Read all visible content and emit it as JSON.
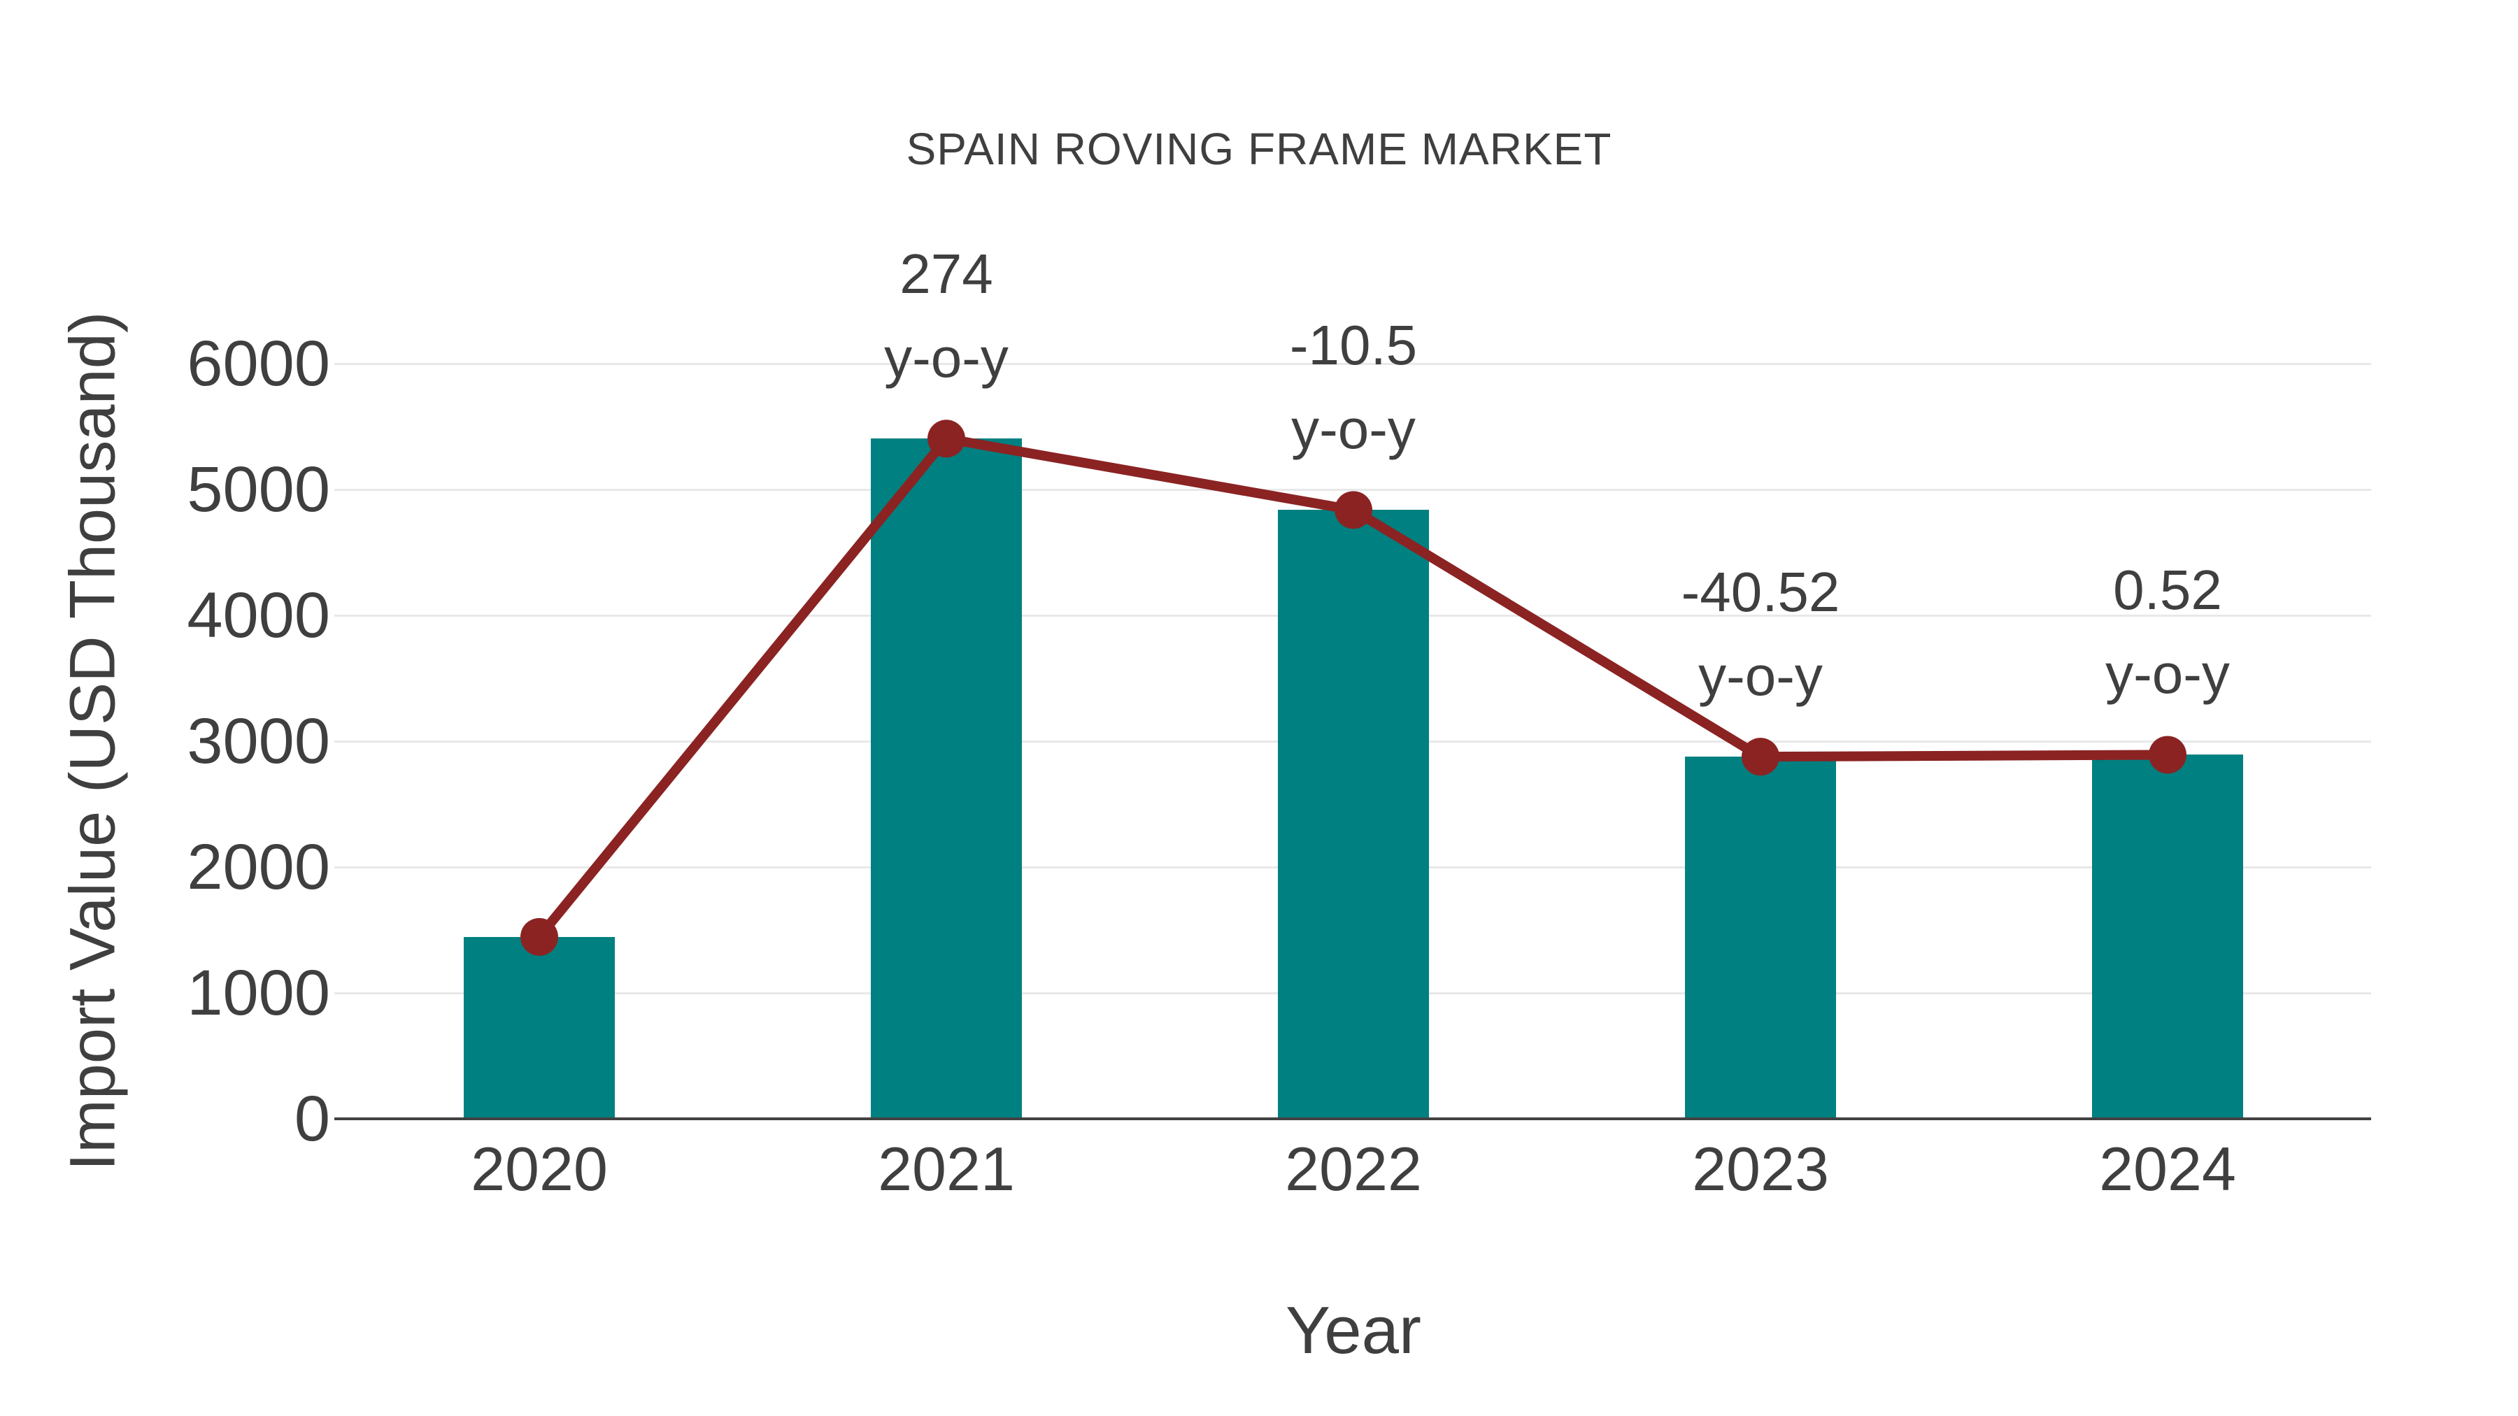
{
  "background": "#ffffff",
  "colors": {
    "bar": "#008080",
    "line": "#8b2323",
    "text": "#3f3f3f",
    "gridline": "#e8e8e8",
    "axis_line": "#424242"
  },
  "chart_data": {
    "type": "bar",
    "title": "SPAIN ROVING FRAME MARKET",
    "xlabel": "Year",
    "ylabel": "Import Value (USD Thousand)",
    "categories": [
      "2020",
      "2021",
      "2022",
      "2023",
      "2024"
    ],
    "series": [
      {
        "name": "Import Value (USD Thousand)",
        "type": "bar",
        "color": "#008080",
        "values": [
          1445,
          5404,
          4837,
          2877,
          2892
        ]
      },
      {
        "name": "Year-over-year trend",
        "type": "line",
        "color": "#8b2323",
        "values": [
          1445,
          5404,
          4837,
          2877,
          2892
        ]
      }
    ],
    "annotations": [
      {
        "category": "2021",
        "lines": [
          "274",
          "y-o-y"
        ]
      },
      {
        "category": "2022",
        "lines": [
          "-10.5",
          "y-o-y"
        ]
      },
      {
        "category": "2023",
        "lines": [
          "-40.52",
          "y-o-y"
        ]
      },
      {
        "category": "2024",
        "lines": [
          "0.52",
          "y-o-y"
        ]
      }
    ],
    "yticks": [
      0,
      1000,
      2000,
      3000,
      4000,
      5000,
      6000
    ],
    "ylim": [
      0,
      6000
    ],
    "grid": true,
    "legend_position": "none"
  }
}
